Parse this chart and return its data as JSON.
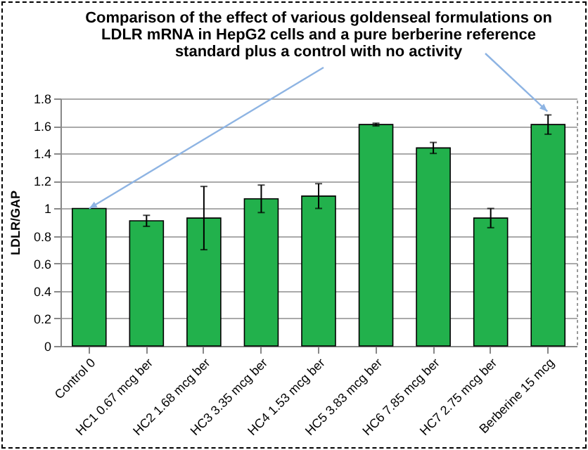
{
  "chart_data": {
    "type": "bar",
    "title": [
      "Comparison of the effect of various goldenseal formulations on",
      "LDLR mRNA  in HepG2 cells and a pure berberine reference",
      "standard plus a control with no activity"
    ],
    "ylabel": "LDLR/GAP",
    "categories": [
      "Control  0",
      "HC1 0.67  mcg ber",
      "HC2  1.68  mcg ber",
      "HC3  3.35  mcg ber",
      "HC4  1.53  mcg ber",
      "HC5  3.83  mcg ber",
      "HC6  7.85  mcg ber",
      "HC7  2.75  mcg ber",
      "Berberine 15  mcg"
    ],
    "values": [
      1.0,
      0.91,
      0.93,
      1.07,
      1.09,
      1.61,
      1.44,
      0.93,
      1.61
    ],
    "errors": [
      null,
      0.04,
      0.23,
      0.1,
      0.09,
      0.01,
      0.04,
      0.07,
      0.07
    ],
    "color": "#22b14c",
    "ylim": [
      0,
      1.8
    ],
    "yticks": [
      0,
      0.2,
      0.4,
      0.6,
      0.8,
      1,
      1.2,
      1.4,
      1.6,
      1.8
    ],
    "grid": "y"
  }
}
